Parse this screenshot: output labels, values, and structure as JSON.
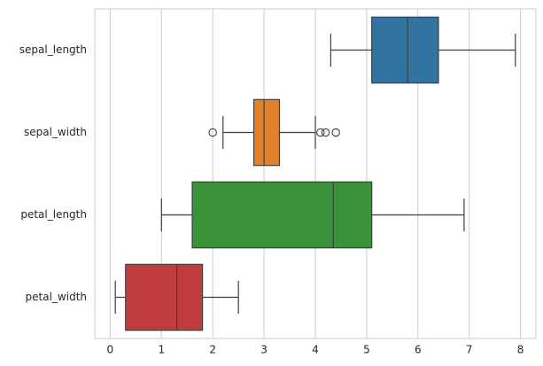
{
  "chart_data": {
    "type": "boxplot",
    "orientation": "horizontal",
    "categories": [
      "sepal_length",
      "sepal_width",
      "petal_length",
      "petal_width"
    ],
    "boxes": [
      {
        "low": 4.3,
        "q1": 5.1,
        "median": 5.8,
        "q3": 6.4,
        "high": 7.9,
        "outliers": [],
        "color": "#3274a1"
      },
      {
        "low": 2.2,
        "q1": 2.8,
        "median": 3.0,
        "q3": 3.3,
        "high": 4.0,
        "outliers": [
          2.0,
          4.1,
          4.2,
          4.4
        ],
        "color": "#e1812c"
      },
      {
        "low": 1.0,
        "q1": 1.6,
        "median": 4.35,
        "q3": 5.1,
        "high": 6.9,
        "outliers": [],
        "color": "#3a923a"
      },
      {
        "low": 0.1,
        "q1": 0.3,
        "median": 1.3,
        "q3": 1.8,
        "high": 2.5,
        "outliers": [],
        "color": "#c03d3e"
      }
    ],
    "xlim": [
      -0.3,
      8.3
    ],
    "xticks": [
      0,
      1,
      2,
      3,
      4,
      5,
      6,
      7,
      8
    ],
    "grid": true
  }
}
